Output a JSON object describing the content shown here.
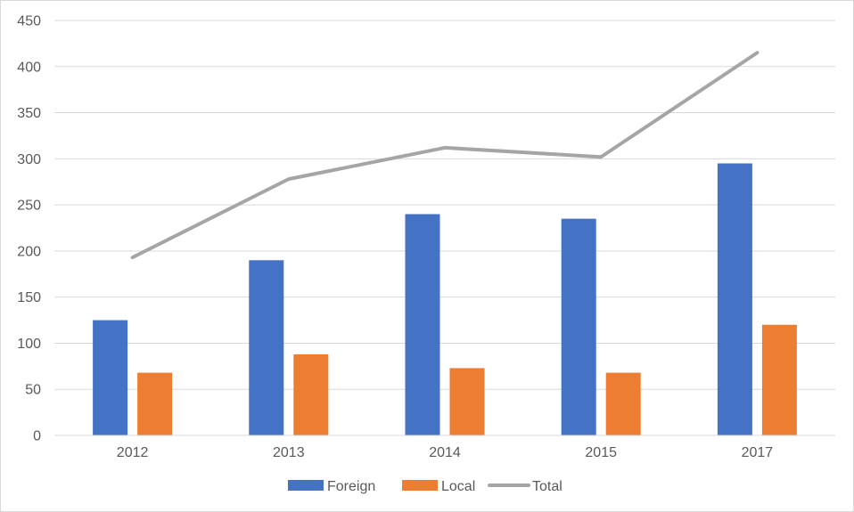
{
  "chart_data": {
    "type": "bar",
    "categories": [
      "2012",
      "2013",
      "2014",
      "2015",
      "2017"
    ],
    "series": [
      {
        "name": "Foreign",
        "type": "bar",
        "color": "#4472c4",
        "values": [
          125,
          190,
          240,
          235,
          295
        ]
      },
      {
        "name": "Local",
        "type": "bar",
        "color": "#ed7d31",
        "values": [
          68,
          88,
          73,
          68,
          120
        ]
      },
      {
        "name": "Total",
        "type": "line",
        "color": "#a5a5a5",
        "values": [
          193,
          278,
          312,
          302,
          415
        ]
      }
    ],
    "ylim": [
      0,
      450
    ],
    "yticks": [
      0,
      50,
      100,
      150,
      200,
      250,
      300,
      350,
      400,
      450
    ],
    "grid": true,
    "legend_position": "bottom"
  }
}
